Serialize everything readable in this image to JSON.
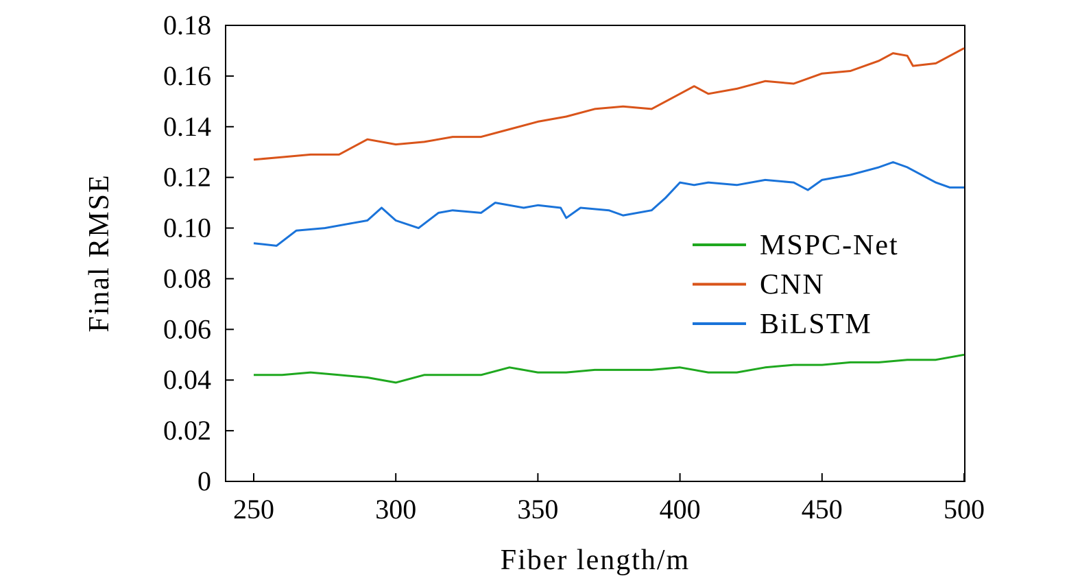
{
  "chart_data": {
    "type": "line",
    "title": "",
    "xlabel": "Fiber length/m",
    "ylabel": "Final RMSE",
    "xlim": [
      240,
      500
    ],
    "ylim": [
      0,
      0.18
    ],
    "xticks": [
      250,
      300,
      350,
      400,
      450,
      500
    ],
    "xtick_labels": [
      "250",
      "300",
      "350",
      "400",
      "450",
      "500"
    ],
    "yticks": [
      0,
      0.02,
      0.04,
      0.06,
      0.08,
      0.1,
      0.12,
      0.14,
      0.16,
      0.18
    ],
    "ytick_labels": [
      "0",
      "0.02",
      "0.04",
      "0.06",
      "0.08",
      "0.10",
      "0.12",
      "0.14",
      "0.16",
      "0.18"
    ],
    "grid": false,
    "legend_position": "center-right",
    "series": [
      {
        "name": "MSPC-Net",
        "color": "#1fa81f",
        "x": [
          250,
          260,
          270,
          280,
          290,
          300,
          310,
          320,
          330,
          340,
          350,
          360,
          370,
          380,
          390,
          400,
          410,
          420,
          430,
          440,
          450,
          460,
          470,
          480,
          490,
          500
        ],
        "y": [
          0.042,
          0.042,
          0.043,
          0.042,
          0.041,
          0.039,
          0.042,
          0.042,
          0.042,
          0.045,
          0.043,
          0.043,
          0.044,
          0.044,
          0.044,
          0.045,
          0.043,
          0.043,
          0.045,
          0.046,
          0.046,
          0.047,
          0.047,
          0.048,
          0.048,
          0.05
        ]
      },
      {
        "name": "CNN",
        "color": "#d9541a",
        "x": [
          250,
          260,
          270,
          280,
          290,
          300,
          310,
          320,
          330,
          340,
          350,
          360,
          370,
          380,
          390,
          400,
          405,
          410,
          420,
          430,
          440,
          450,
          460,
          470,
          475,
          480,
          482,
          490,
          500
        ],
        "y": [
          0.127,
          0.128,
          0.129,
          0.129,
          0.135,
          0.133,
          0.134,
          0.136,
          0.136,
          0.139,
          0.142,
          0.144,
          0.147,
          0.148,
          0.147,
          0.153,
          0.156,
          0.153,
          0.155,
          0.158,
          0.157,
          0.161,
          0.162,
          0.166,
          0.169,
          0.168,
          0.164,
          0.165,
          0.171
        ]
      },
      {
        "name": "BiLSTM",
        "color": "#1a73d9",
        "x": [
          250,
          258,
          265,
          275,
          285,
          290,
          295,
          300,
          308,
          315,
          320,
          330,
          335,
          345,
          350,
          358,
          360,
          365,
          375,
          380,
          390,
          395,
          400,
          405,
          410,
          420,
          430,
          440,
          445,
          450,
          460,
          470,
          475,
          480,
          490,
          495,
          500
        ],
        "y": [
          0.094,
          0.093,
          0.099,
          0.1,
          0.102,
          0.103,
          0.108,
          0.103,
          0.1,
          0.106,
          0.107,
          0.106,
          0.11,
          0.108,
          0.109,
          0.108,
          0.104,
          0.108,
          0.107,
          0.105,
          0.107,
          0.112,
          0.118,
          0.117,
          0.118,
          0.117,
          0.119,
          0.118,
          0.115,
          0.119,
          0.121,
          0.124,
          0.126,
          0.124,
          0.118,
          0.116,
          0.116
        ]
      }
    ]
  }
}
